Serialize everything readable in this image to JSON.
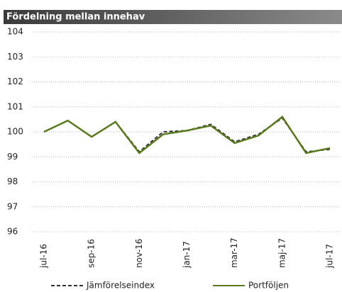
{
  "chart_data": {
    "type": "line",
    "title": "Fördelning mellan innehav",
    "categories": [
      "jul-16",
      null,
      "sep-16",
      null,
      "nov-16",
      null,
      "jan-17",
      null,
      "mar-17",
      null,
      "maj-17",
      null,
      "jul-17"
    ],
    "series": [
      {
        "name": "Jämförelseindex",
        "color": "#333333",
        "dash": true,
        "values": [
          100.0,
          100.45,
          99.8,
          100.4,
          99.2,
          100.0,
          100.05,
          100.3,
          99.6,
          99.9,
          100.55,
          99.2,
          99.3
        ]
      },
      {
        "name": "Portföljen",
        "color": "#5a7a1e",
        "dash": false,
        "values": [
          100.0,
          100.45,
          99.8,
          100.4,
          99.15,
          99.9,
          100.05,
          100.25,
          99.55,
          99.85,
          100.6,
          99.15,
          99.35
        ]
      }
    ],
    "ylim": [
      96,
      104
    ],
    "yticks": [
      96,
      97,
      98,
      99,
      100,
      101,
      102,
      103,
      104
    ],
    "grid": true,
    "legend": "bottom"
  }
}
